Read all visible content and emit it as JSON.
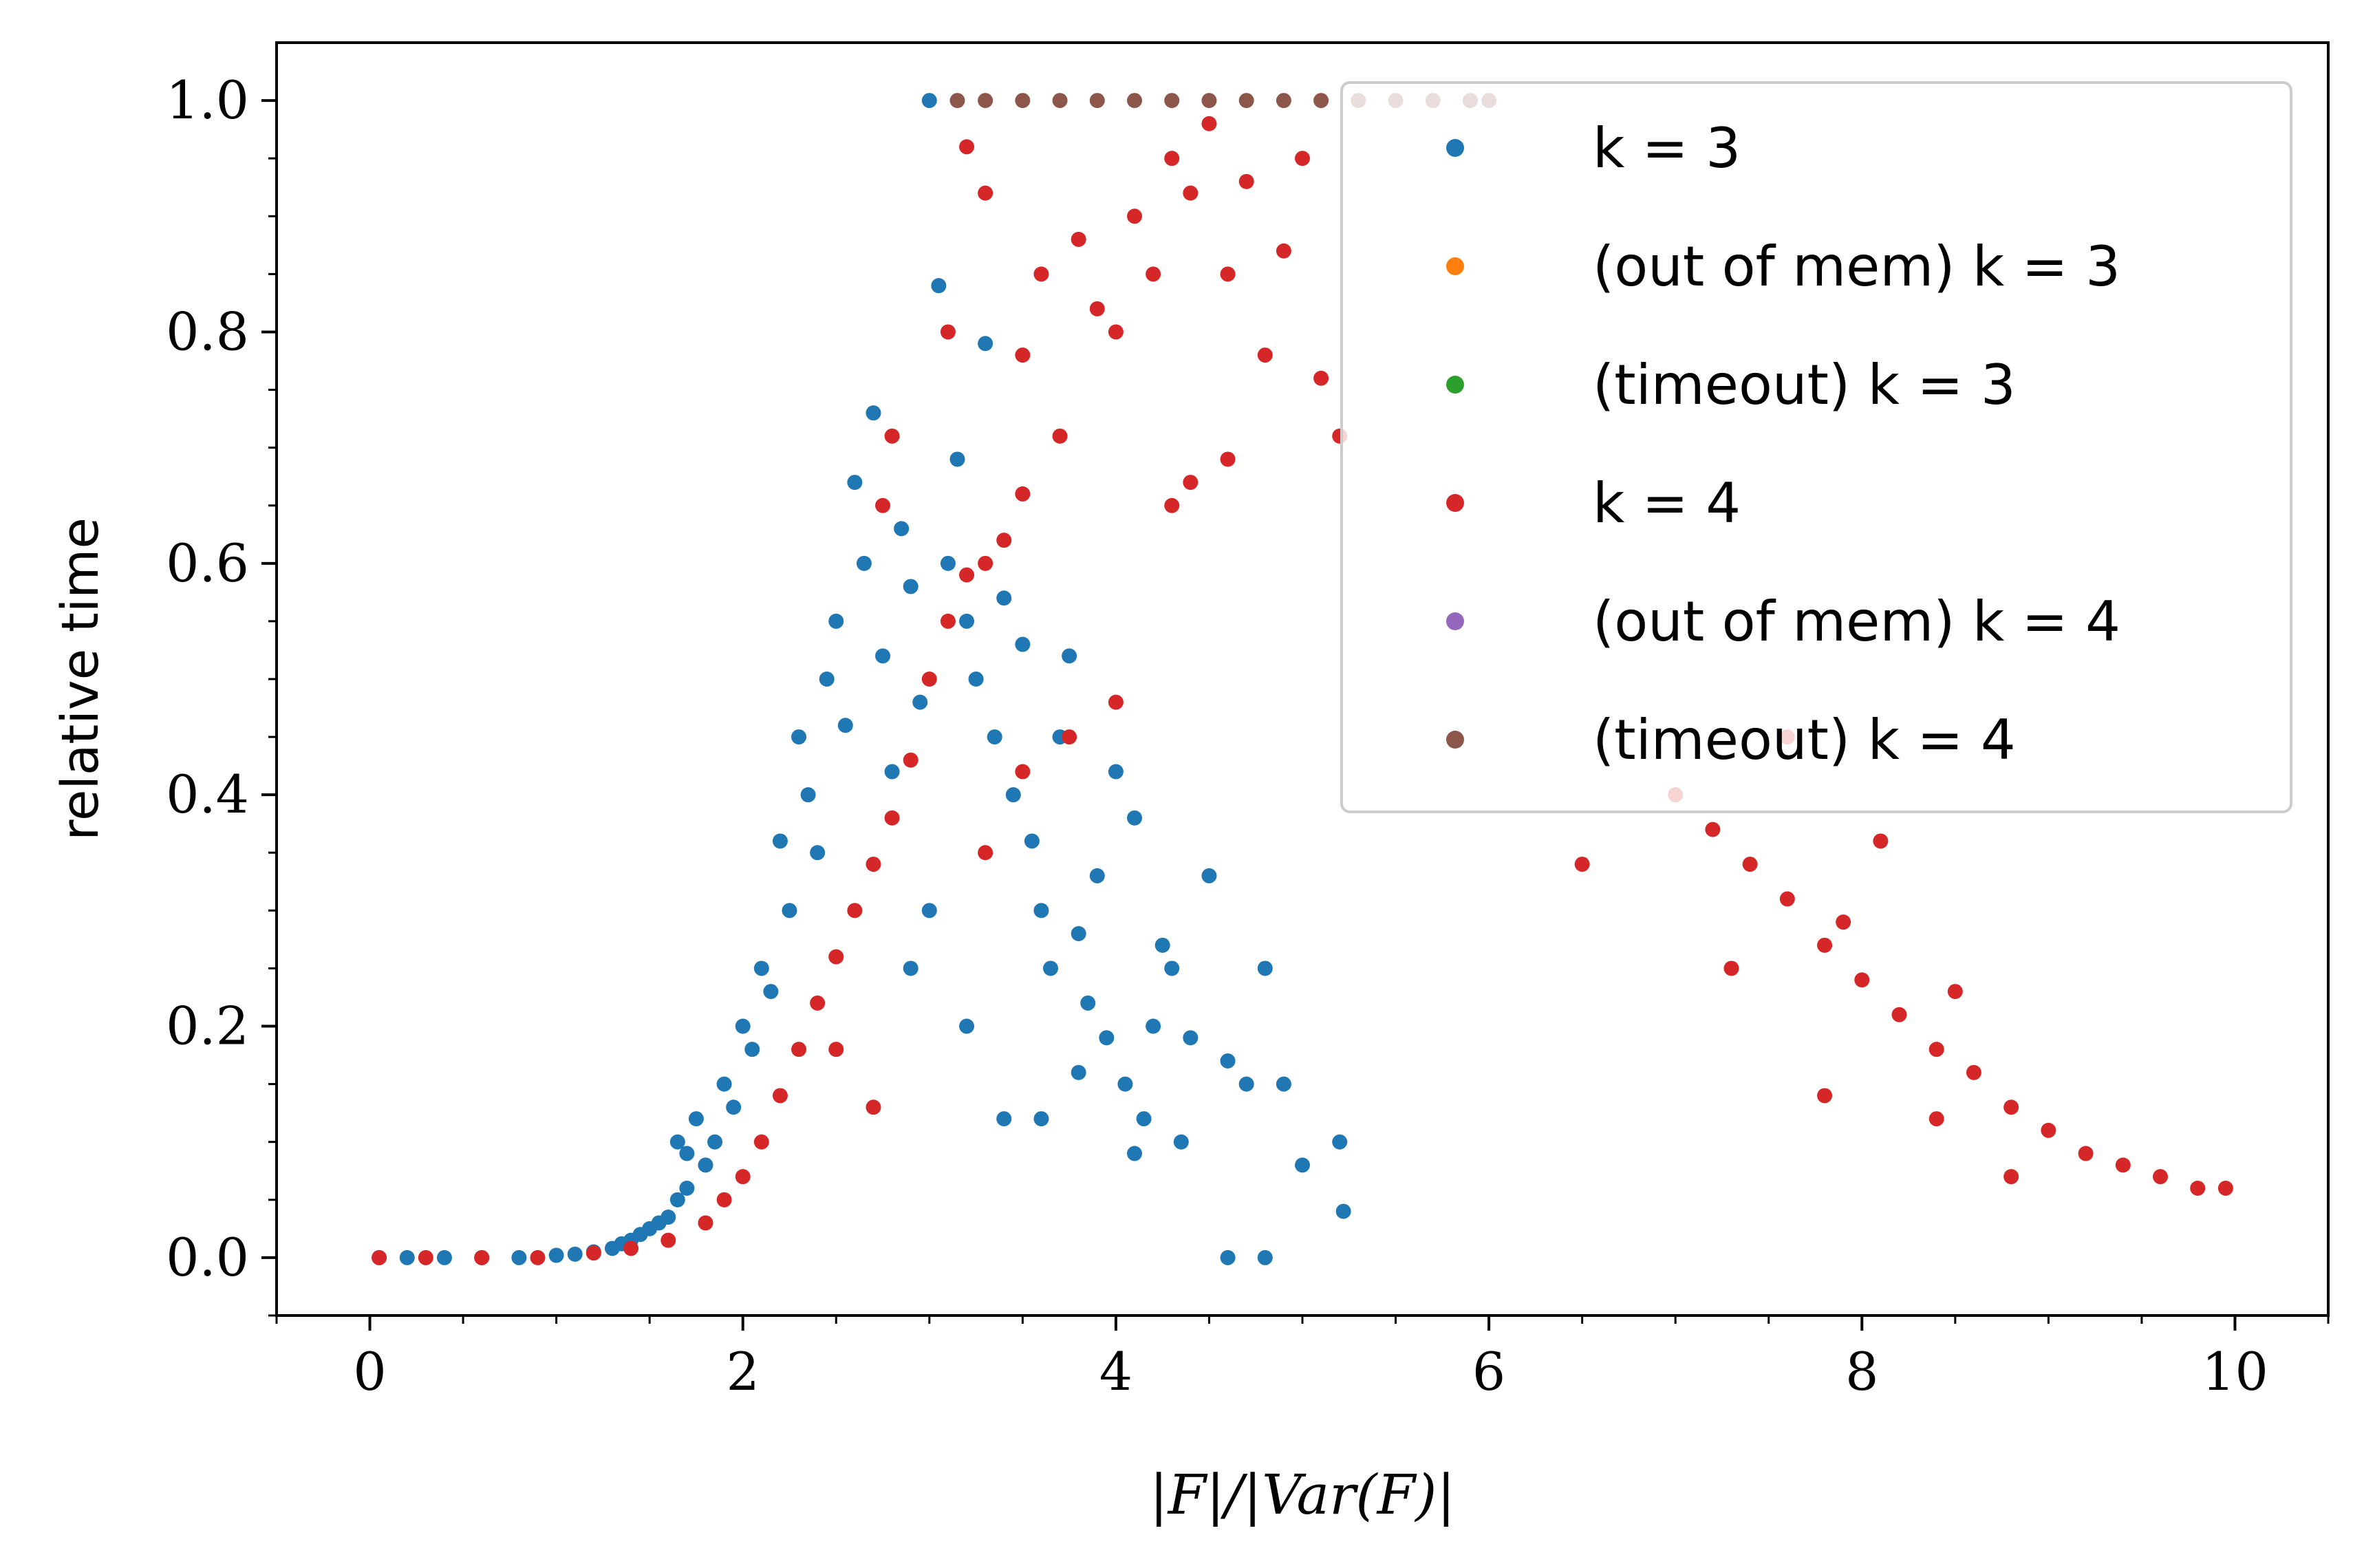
{
  "chart_data": {
    "type": "scatter",
    "xlabel": "|F|/|Var(F)|",
    "ylabel": "relative time",
    "xlim": [
      -0.5,
      10.5
    ],
    "ylim": [
      -0.05,
      1.05
    ],
    "x_ticks": [
      0,
      2,
      4,
      6,
      8,
      10
    ],
    "x_tick_labels": [
      "0",
      "2",
      "4",
      "6",
      "8",
      "10"
    ],
    "y_ticks": [
      0.0,
      0.2,
      0.4,
      0.6,
      0.8,
      1.0
    ],
    "y_tick_labels": [
      "0.0",
      "0.2",
      "0.4",
      "0.6",
      "0.8",
      "1.0"
    ],
    "grid": false,
    "legend_position": "top-right",
    "series": [
      {
        "name": "k = 3",
        "color": "#1f77b4",
        "points": [
          [
            0.05,
            0
          ],
          [
            0.2,
            0
          ],
          [
            0.4,
            0
          ],
          [
            0.6,
            0
          ],
          [
            0.8,
            0
          ],
          [
            1.0,
            0.002
          ],
          [
            1.1,
            0.003
          ],
          [
            1.2,
            0.005
          ],
          [
            1.3,
            0.008
          ],
          [
            1.35,
            0.012
          ],
          [
            1.4,
            0.015
          ],
          [
            1.45,
            0.02
          ],
          [
            1.5,
            0.025
          ],
          [
            1.55,
            0.03
          ],
          [
            1.6,
            0.035
          ],
          [
            1.65,
            0.05
          ],
          [
            1.7,
            0.06
          ],
          [
            1.65,
            0.1
          ],
          [
            1.7,
            0.09
          ],
          [
            1.75,
            0.12
          ],
          [
            1.8,
            0.08
          ],
          [
            1.85,
            0.1
          ],
          [
            1.9,
            0.15
          ],
          [
            1.95,
            0.13
          ],
          [
            2.0,
            0.2
          ],
          [
            2.05,
            0.18
          ],
          [
            2.1,
            0.25
          ],
          [
            2.15,
            0.23
          ],
          [
            2.2,
            0.36
          ],
          [
            2.25,
            0.3
          ],
          [
            2.3,
            0.45
          ],
          [
            2.35,
            0.4
          ],
          [
            2.4,
            0.35
          ],
          [
            2.45,
            0.5
          ],
          [
            2.5,
            0.55
          ],
          [
            2.55,
            0.46
          ],
          [
            2.6,
            0.67
          ],
          [
            2.65,
            0.6
          ],
          [
            2.7,
            0.73
          ],
          [
            2.75,
            0.52
          ],
          [
            2.8,
            0.42
          ],
          [
            2.85,
            0.63
          ],
          [
            2.9,
            0.58
          ],
          [
            2.95,
            0.48
          ],
          [
            3.0,
            1.0
          ],
          [
            3.05,
            0.84
          ],
          [
            3.1,
            0.6
          ],
          [
            3.15,
            0.69
          ],
          [
            3.2,
            0.55
          ],
          [
            3.25,
            0.5
          ],
          [
            3.3,
            0.79
          ],
          [
            3.35,
            0.45
          ],
          [
            3.4,
            0.57
          ],
          [
            3.45,
            0.4
          ],
          [
            3.5,
            0.53
          ],
          [
            3.55,
            0.36
          ],
          [
            3.6,
            0.3
          ],
          [
            3.65,
            0.25
          ],
          [
            3.7,
            0.45
          ],
          [
            3.75,
            0.52
          ],
          [
            3.8,
            0.28
          ],
          [
            3.85,
            0.22
          ],
          [
            3.9,
            0.33
          ],
          [
            3.95,
            0.19
          ],
          [
            4.0,
            0.42
          ],
          [
            4.05,
            0.15
          ],
          [
            4.1,
            0.38
          ],
          [
            4.15,
            0.12
          ],
          [
            4.2,
            0.2
          ],
          [
            4.25,
            0.27
          ],
          [
            4.3,
            0.25
          ],
          [
            4.35,
            0.1
          ],
          [
            4.4,
            0.19
          ],
          [
            4.5,
            0.33
          ],
          [
            4.6,
            0.17
          ],
          [
            4.6,
            0.0
          ],
          [
            4.7,
            0.15
          ],
          [
            4.8,
            0.25
          ],
          [
            4.8,
            0.0
          ],
          [
            4.9,
            0.15
          ],
          [
            5.0,
            0.08
          ],
          [
            5.2,
            0.1
          ],
          [
            5.22,
            0.04
          ],
          [
            3.2,
            0.2
          ],
          [
            3.4,
            0.12
          ],
          [
            3.6,
            0.12
          ],
          [
            4.1,
            0.09
          ],
          [
            3.0,
            0.3
          ],
          [
            2.9,
            0.25
          ],
          [
            3.8,
            0.16
          ]
        ]
      },
      {
        "name": "(out of mem) k = 3",
        "color": "#ff7f0e",
        "points": []
      },
      {
        "name": "(timeout) k = 3",
        "color": "#2ca02c",
        "points": []
      },
      {
        "name": "k = 4",
        "color": "#d62728",
        "points": [
          [
            0.05,
            0
          ],
          [
            0.3,
            0
          ],
          [
            0.6,
            0
          ],
          [
            0.9,
            0
          ],
          [
            1.2,
            0.004
          ],
          [
            1.4,
            0.008
          ],
          [
            1.6,
            0.015
          ],
          [
            1.8,
            0.03
          ],
          [
            1.9,
            0.05
          ],
          [
            2.0,
            0.07
          ],
          [
            2.1,
            0.1
          ],
          [
            2.2,
            0.14
          ],
          [
            2.3,
            0.18
          ],
          [
            2.4,
            0.22
          ],
          [
            2.5,
            0.26
          ],
          [
            2.6,
            0.3
          ],
          [
            2.7,
            0.34
          ],
          [
            2.8,
            0.38
          ],
          [
            2.9,
            0.43
          ],
          [
            3.0,
            0.5
          ],
          [
            3.1,
            0.55
          ],
          [
            3.2,
            0.59
          ],
          [
            3.3,
            0.6
          ],
          [
            3.4,
            0.62
          ],
          [
            3.5,
            0.66
          ],
          [
            2.8,
            0.71
          ],
          [
            2.75,
            0.65
          ],
          [
            3.1,
            0.8
          ],
          [
            3.2,
            0.96
          ],
          [
            3.3,
            0.92
          ],
          [
            3.5,
            0.78
          ],
          [
            3.6,
            0.85
          ],
          [
            3.7,
            0.71
          ],
          [
            3.8,
            0.88
          ],
          [
            3.9,
            0.82
          ],
          [
            4.0,
            0.8
          ],
          [
            4.1,
            0.9
          ],
          [
            4.2,
            0.85
          ],
          [
            4.3,
            0.95
          ],
          [
            4.4,
            0.92
          ],
          [
            4.5,
            0.98
          ],
          [
            4.6,
            0.85
          ],
          [
            4.7,
            0.93
          ],
          [
            4.8,
            0.78
          ],
          [
            4.9,
            0.87
          ],
          [
            5.0,
            0.95
          ],
          [
            5.1,
            0.76
          ],
          [
            5.2,
            0.71
          ],
          [
            4.0,
            0.48
          ],
          [
            3.75,
            0.45
          ],
          [
            4.3,
            0.65
          ],
          [
            4.6,
            0.69
          ],
          [
            4.4,
            0.67
          ],
          [
            3.5,
            0.42
          ],
          [
            3.3,
            0.35
          ],
          [
            2.7,
            0.13
          ],
          [
            2.5,
            0.18
          ],
          [
            6.5,
            0.34
          ],
          [
            7.0,
            0.4
          ],
          [
            7.2,
            0.37
          ],
          [
            7.4,
            0.34
          ],
          [
            7.6,
            0.31
          ],
          [
            7.8,
            0.27
          ],
          [
            8.0,
            0.24
          ],
          [
            8.2,
            0.21
          ],
          [
            8.4,
            0.18
          ],
          [
            8.6,
            0.16
          ],
          [
            8.8,
            0.13
          ],
          [
            9.0,
            0.11
          ],
          [
            9.2,
            0.09
          ],
          [
            9.4,
            0.08
          ],
          [
            9.6,
            0.07
          ],
          [
            9.8,
            0.06
          ],
          [
            9.95,
            0.06
          ],
          [
            7.3,
            0.25
          ],
          [
            7.8,
            0.14
          ],
          [
            8.4,
            0.12
          ],
          [
            8.8,
            0.07
          ],
          [
            7.6,
            0.45
          ],
          [
            8.1,
            0.36
          ],
          [
            7.9,
            0.29
          ],
          [
            8.5,
            0.23
          ]
        ]
      },
      {
        "name": "(out of mem) k = 4",
        "color": "#9467bd",
        "points": []
      },
      {
        "name": "(timeout) k = 4",
        "color": "#8c564b",
        "points": [
          [
            3.15,
            1.0
          ],
          [
            3.3,
            1.0
          ],
          [
            3.5,
            1.0
          ],
          [
            3.7,
            1.0
          ],
          [
            3.9,
            1.0
          ],
          [
            4.1,
            1.0
          ],
          [
            4.3,
            1.0
          ],
          [
            4.5,
            1.0
          ],
          [
            4.7,
            1.0
          ],
          [
            4.9,
            1.0
          ],
          [
            5.1,
            1.0
          ],
          [
            5.3,
            1.0
          ],
          [
            5.5,
            1.0
          ],
          [
            5.7,
            1.0
          ],
          [
            5.9,
            1.0
          ],
          [
            6.0,
            1.0
          ]
        ]
      }
    ]
  }
}
